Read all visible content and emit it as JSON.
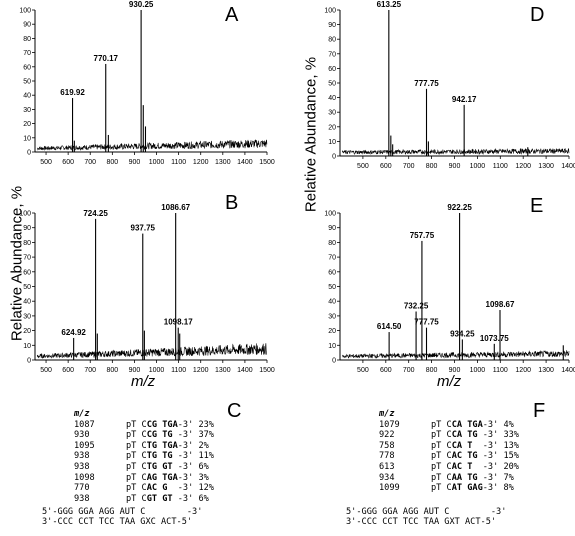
{
  "ylabel": "Relative Abundance, %",
  "xlabel": "m/z",
  "chart_data": [
    {
      "id": "A",
      "type": "line",
      "label": "A",
      "xlim": [
        450,
        1500
      ],
      "ylim": [
        0,
        100
      ],
      "xticks": [
        500,
        600,
        700,
        800,
        900,
        1000,
        1100,
        1200,
        1300,
        1400,
        1500
      ],
      "yticks": [
        0,
        10,
        20,
        30,
        40,
        50,
        60,
        70,
        80,
        90,
        100
      ],
      "baseline_start": 3,
      "baseline_end": 7,
      "peaks": [
        {
          "x": 619.92,
          "y": 38,
          "label": "619.92"
        },
        {
          "x": 770.17,
          "y": 62,
          "label": "770.17"
        },
        {
          "x": 930.25,
          "y": 100,
          "label": "930.25"
        },
        {
          "x": 940,
          "y": 33
        },
        {
          "x": 950,
          "y": 18
        },
        {
          "x": 782,
          "y": 12
        },
        {
          "x": 628,
          "y": 8
        }
      ]
    },
    {
      "id": "B",
      "type": "line",
      "label": "B",
      "xlim": [
        450,
        1500
      ],
      "ylim": [
        0,
        100
      ],
      "xticks": [
        500,
        600,
        700,
        800,
        900,
        1000,
        1100,
        1200,
        1300,
        1400,
        1500
      ],
      "yticks": [
        0,
        10,
        20,
        30,
        40,
        50,
        60,
        70,
        80,
        90,
        100
      ],
      "baseline_start": 3,
      "baseline_end": 9,
      "peaks": [
        {
          "x": 624.92,
          "y": 15,
          "label": "624.92"
        },
        {
          "x": 724.25,
          "y": 96,
          "label": "724.25"
        },
        {
          "x": 937.75,
          "y": 86,
          "label": "937.75"
        },
        {
          "x": 1086.67,
          "y": 100,
          "label": "1086.67"
        },
        {
          "x": 1098.17,
          "y": 22,
          "label": "1098.17"
        },
        {
          "x": 945,
          "y": 20
        },
        {
          "x": 732,
          "y": 18
        },
        {
          "x": 1105,
          "y": 18
        }
      ]
    },
    {
      "id": "D",
      "type": "line",
      "label": "D",
      "xlim": [
        400,
        1400
      ],
      "ylim": [
        0,
        100
      ],
      "xticks": [
        500,
        600,
        700,
        800,
        900,
        1000,
        1100,
        1200,
        1300,
        1400
      ],
      "yticks": [
        0,
        10,
        20,
        30,
        40,
        50,
        60,
        70,
        80,
        90,
        100
      ],
      "baseline_start": 3,
      "baseline_end": 4,
      "peaks": [
        {
          "x": 613.25,
          "y": 100,
          "label": "613.25"
        },
        {
          "x": 777.75,
          "y": 46,
          "label": "777.75"
        },
        {
          "x": 942.17,
          "y": 35,
          "label": "942.17"
        },
        {
          "x": 622,
          "y": 14
        },
        {
          "x": 630,
          "y": 8
        },
        {
          "x": 786,
          "y": 10
        },
        {
          "x": 1220,
          "y": 6
        }
      ]
    },
    {
      "id": "E",
      "type": "line",
      "label": "E",
      "xlim": [
        400,
        1400
      ],
      "ylim": [
        0,
        100
      ],
      "xticks": [
        500,
        600,
        700,
        800,
        900,
        1000,
        1100,
        1200,
        1300,
        1400
      ],
      "yticks": [
        0,
        10,
        20,
        30,
        40,
        50,
        60,
        70,
        80,
        90,
        100
      ],
      "baseline_start": 3,
      "baseline_end": 5,
      "peaks": [
        {
          "x": 614.5,
          "y": 19,
          "label": "614.50"
        },
        {
          "x": 732.25,
          "y": 33,
          "label": "732.25"
        },
        {
          "x": 757.75,
          "y": 81,
          "label": "757.75"
        },
        {
          "x": 777.75,
          "y": 22,
          "label": "777.75"
        },
        {
          "x": 922.25,
          "y": 100,
          "label": "922.25"
        },
        {
          "x": 934.25,
          "y": 14,
          "label": "934.25"
        },
        {
          "x": 1073.75,
          "y": 11,
          "label": "1073.75"
        },
        {
          "x": 1098.67,
          "y": 34,
          "label": "1098.67"
        },
        {
          "x": 1375,
          "y": 10
        }
      ]
    }
  ],
  "tables": {
    "C": {
      "header": "m/z",
      "rows": [
        {
          "mz": "1087",
          "pre": "pT C",
          "bold": "CG TGA",
          "post": "-3'",
          "pct": "23%"
        },
        {
          "mz": "930",
          "pre": "pT C",
          "bold": "CG TG",
          "post": " -3'",
          "pct": "37%"
        },
        {
          "mz": "1095",
          "pre": "pT C",
          "bold": "TG TGA",
          "post": "-3'",
          "pct": "2%"
        },
        {
          "mz": "938",
          "pre": "pT C",
          "bold": "TG TG",
          "post": " -3'",
          "pct": "11%"
        },
        {
          "mz": "938",
          "pre": "pT C",
          "bold": "TG GT",
          "post": " -3'",
          "pct": "6%"
        },
        {
          "mz": "1098",
          "pre": "pT C",
          "bold": "AG TGA",
          "post": "-3'",
          "pct": "3%"
        },
        {
          "mz": "770",
          "pre": "pT C",
          "bold": "AC G",
          "post": "  -3'",
          "pct": "12%"
        },
        {
          "mz": "938",
          "pre": "pT C",
          "bold": "GT GT",
          "post": " -3'",
          "pct": "6%"
        }
      ],
      "duplex_top": "5'-GGG GGA AGG AUT C        -3'",
      "duplex_bottom": "3'-CCC CCT TCC TAA GXC ACT-5'"
    },
    "F": {
      "header": "m/z",
      "rows": [
        {
          "mz": "1079",
          "pre": "pT C",
          "bold": "CA TGA",
          "post": "-3'",
          "pct": "4%"
        },
        {
          "mz": "922",
          "pre": "pT C",
          "bold": "CA TG",
          "post": " -3'",
          "pct": "33%"
        },
        {
          "mz": "758",
          "pre": "pT C",
          "bold": "CA T",
          "post": "  -3'",
          "pct": "13%"
        },
        {
          "mz": "778",
          "pre": "pT C",
          "bold": "AC TG",
          "post": " -3'",
          "pct": "15%"
        },
        {
          "mz": "613",
          "pre": "pT C",
          "bold": "AC T",
          "post": "  -3'",
          "pct": "20%"
        },
        {
          "mz": "934",
          "pre": "pT C",
          "bold": "AA TG",
          "post": " -3'",
          "pct": "7%"
        },
        {
          "mz": "1099",
          "pre": "pT C",
          "bold": "AT GAG",
          "post": "-3'",
          "pct": "8%"
        }
      ],
      "duplex_top": "5'-GGG GGA AGG AUT C        -3'",
      "duplex_bottom": "3'-CCC CCT TCC TAA GXT ACT-5'"
    }
  },
  "panel_letters": {
    "A": "A",
    "B": "B",
    "C": "C",
    "D": "D",
    "E": "E",
    "F": "F"
  }
}
